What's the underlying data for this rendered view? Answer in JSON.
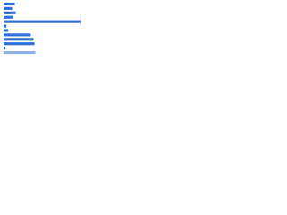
{
  "chart_data": {
    "type": "bar",
    "orientation": "horizontal",
    "categories": [
      null,
      null,
      null,
      null,
      null,
      null,
      null,
      null,
      null,
      null,
      null,
      null
    ],
    "values": [
      12,
      9,
      13,
      10,
      82,
      3,
      5,
      29,
      32,
      33,
      2,
      34
    ],
    "colors": [
      "#2d6fd2",
      "#2d6fd2",
      "#2d6fd2",
      "#2d6fd2",
      "#2d6fd2",
      "#2d6fd2",
      "#2d6fd2",
      "#2d6fd2",
      "#2d6fd2",
      "#2d6fd2",
      "#2d6fd2",
      "#8fb1e3"
    ]
  }
}
